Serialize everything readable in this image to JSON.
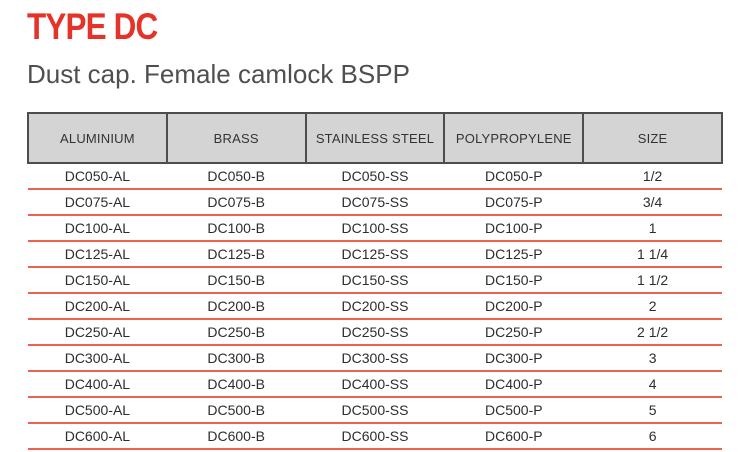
{
  "header": {
    "title": "TYPE DC",
    "subtitle": "Dust cap. Female camlock BSPP"
  },
  "table": {
    "columns": [
      "ALUMINIUM",
      "BRASS",
      "STAINLESS STEEL",
      "POLYPROPYLENE",
      "SIZE"
    ],
    "rows": [
      [
        "DC050-AL",
        "DC050-B",
        "DC050-SS",
        "DC050-P",
        "1/2"
      ],
      [
        "DC075-AL",
        "DC075-B",
        "DC075-SS",
        "DC075-P",
        "3/4"
      ],
      [
        "DC100-AL",
        "DC100-B",
        "DC100-SS",
        "DC100-P",
        "1"
      ],
      [
        "DC125-AL",
        "DC125-B",
        "DC125-SS",
        "DC125-P",
        "1 1/4"
      ],
      [
        "DC150-AL",
        "DC150-B",
        "DC150-SS",
        "DC150-P",
        "1 1/2"
      ],
      [
        "DC200-AL",
        "DC200-B",
        "DC200-SS",
        "DC200-P",
        "2"
      ],
      [
        "DC250-AL",
        "DC250-B",
        "DC250-SS",
        "DC250-P",
        "2 1/2"
      ],
      [
        "DC300-AL",
        "DC300-B",
        "DC300-SS",
        "DC300-P",
        "3"
      ],
      [
        "DC400-AL",
        "DC400-B",
        "DC400-SS",
        "DC400-P",
        "4"
      ],
      [
        "DC500-AL",
        "DC500-B",
        "DC500-SS",
        "DC500-P",
        "5"
      ],
      [
        "DC600-AL",
        "DC600-B",
        "DC600-SS",
        "DC600-P",
        "6"
      ]
    ]
  },
  "colors": {
    "title_red": "#e63329",
    "divider_red": "#ef614f",
    "header_bg": "#d4d4d4",
    "header_border": "#4d4d4d",
    "text_dark": "#2d2d2d",
    "subtitle_gray": "#4f4f4f"
  }
}
